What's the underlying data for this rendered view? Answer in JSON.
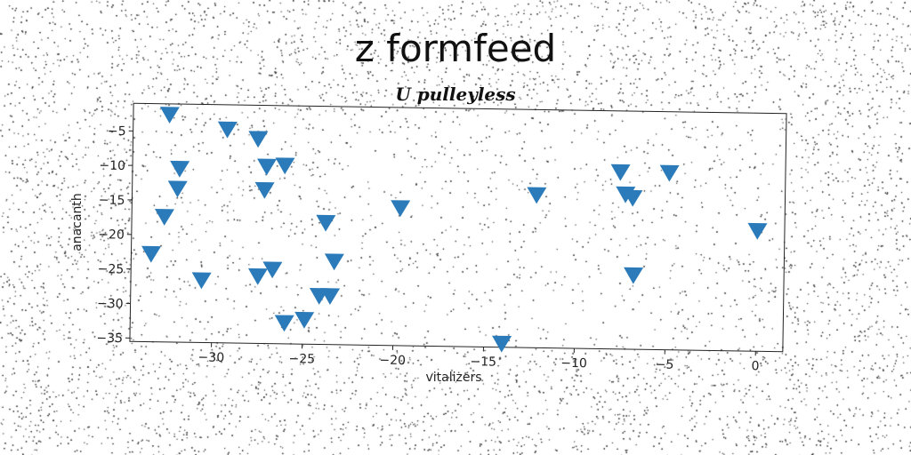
{
  "chart_data": {
    "type": "scatter",
    "title": "z formfeed",
    "subtitle": "U pulleyless",
    "xlabel": "vitalizers",
    "ylabel": "anacanth",
    "xlim": [
      -34.5,
      1.5
    ],
    "ylim": [
      -35.5,
      -1
    ],
    "x_ticks": [
      -30,
      -25,
      -20,
      -15,
      -10,
      -5,
      0
    ],
    "x_tick_labels": [
      "−30",
      "−25",
      "−20",
      "−15",
      "−10",
      "−5",
      "0"
    ],
    "y_ticks": [
      -5,
      -10,
      -15,
      -20,
      -25,
      -30,
      -35
    ],
    "y_tick_labels": [
      "−5",
      "−10",
      "−15",
      "−20",
      "−25",
      "−30",
      "−35"
    ],
    "marker": "triangle-down",
    "marker_color": "#2b7bba",
    "grid": false,
    "x": [
      -32.5,
      -29.3,
      -27.6,
      -27.1,
      -26.1,
      -31.9,
      -32.0,
      -32.7,
      -33.4,
      -30.6,
      -27.2,
      -27.5,
      -26.7,
      -23.8,
      -23.3,
      -24.1,
      -23.5,
      -24.9,
      -26.0,
      -19.7,
      -14.0,
      -12.2,
      -7.6,
      -7.3,
      -6.9,
      -4.9,
      -6.8,
      0.0
    ],
    "y": [
      -2.5,
      -4.5,
      -5.8,
      -9.8,
      -9.6,
      -10.3,
      -13.2,
      -17.3,
      -22.7,
      -26.4,
      -13.2,
      -25.7,
      -24.7,
      -17.8,
      -23.4,
      -28.4,
      -28.4,
      -31.9,
      -32.4,
      -15.5,
      -34.9,
      -13.3,
      -9.8,
      -13.0,
      -13.5,
      -9.8,
      -24.7,
      -18.0
    ]
  }
}
